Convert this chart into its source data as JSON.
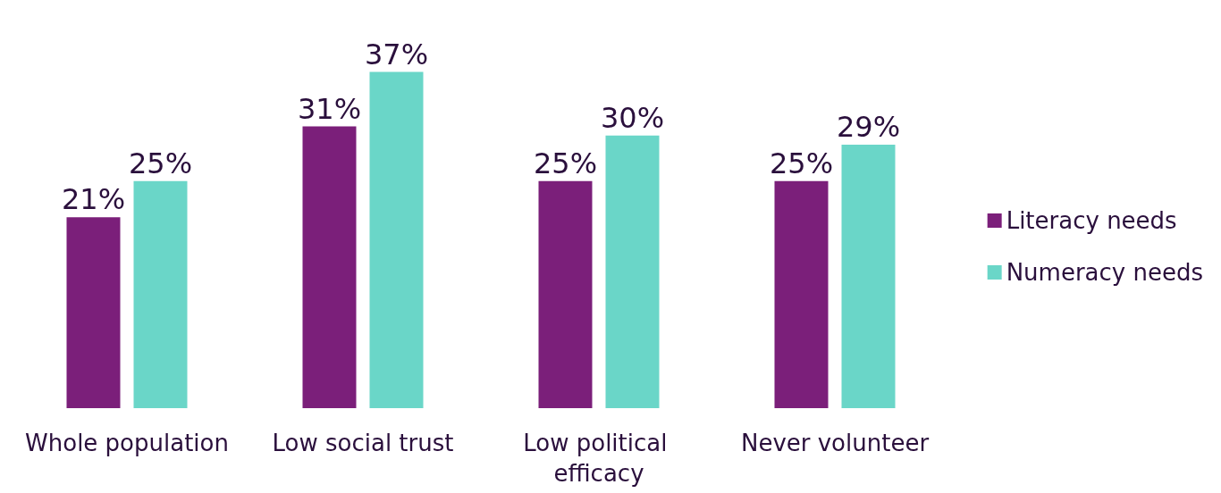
{
  "chart_data": {
    "type": "bar",
    "categories": [
      "Whole population",
      "Low social trust",
      "Low political efficacy",
      "Never volunteer"
    ],
    "series": [
      {
        "name": "Literacy needs",
        "color": "#7b1f7a",
        "values": [
          21,
          31,
          25,
          25
        ],
        "value_labels": [
          "21%",
          "31%",
          "25%",
          "25%"
        ]
      },
      {
        "name": "Numeracy needs",
        "color": "#6ad6c8",
        "values": [
          25,
          37,
          30,
          29
        ],
        "value_labels": [
          "25%",
          "37%",
          "30%",
          "29%"
        ]
      }
    ],
    "legend": "right"
  }
}
